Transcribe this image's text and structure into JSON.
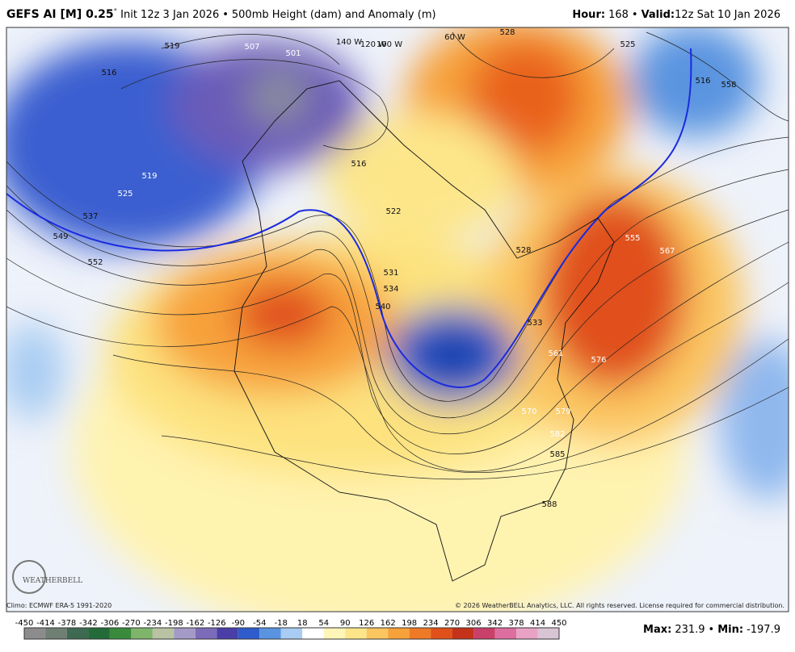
{
  "header": {
    "model": "GEFS AI [M] 0.25",
    "degree": "°",
    "init": "Init 12z 3 Jan 2026",
    "separator": "•",
    "field": "500mb Height (dam) and Anomaly (m)",
    "hour_label": "Hour:",
    "hour": "168",
    "valid_label": "Valid:",
    "valid": "12z Sat 10 Jan 2026"
  },
  "map": {
    "contour_labels": [
      "519",
      "507",
      "501",
      "516",
      "519",
      "525",
      "537",
      "549",
      "552",
      "516",
      "522",
      "531",
      "534",
      "540",
      "528",
      "533",
      "561",
      "567",
      "576",
      "570",
      "579",
      "582",
      "585",
      "588",
      "525",
      "516",
      "558",
      "528",
      "555"
    ],
    "longitude_labels": [
      "140 W",
      "120 W",
      "100 W",
      "60 W"
    ],
    "logo": "WEATHERBELL"
  },
  "footer": {
    "climo": "Climo: ECMWF ERA-5 1991-2020",
    "copyright": "© 2026 WeatherBELL Analytics, LLC. All rights reserved. License required for commercial distribution.",
    "max_label": "Max:",
    "max": "231.9",
    "separator": "•",
    "min_label": "Min:",
    "min": "-197.9"
  },
  "colorbar": {
    "ticks": [
      -450,
      -414,
      -378,
      -342,
      -306,
      -270,
      -234,
      -198,
      -162,
      -126,
      -90,
      -54,
      -18,
      18,
      54,
      90,
      126,
      162,
      198,
      234,
      270,
      306,
      342,
      378,
      414,
      450
    ],
    "colors": [
      "#8c8c8c",
      "#6f7f74",
      "#3f6a52",
      "#246b3a",
      "#3a8a3e",
      "#7fb56b",
      "#b9c3a4",
      "#a39ac8",
      "#7c6bb8",
      "#4a3fa8",
      "#2f5ccc",
      "#5a94e0",
      "#a8ccf2",
      "#ffffff",
      "#fff5b8",
      "#fde68a",
      "#fbc560",
      "#f7a13a",
      "#ef7a26",
      "#e0501a",
      "#c4321a",
      "#c9406a",
      "#dc6ea0",
      "#e9a2c4",
      "#d9c4d4"
    ]
  }
}
